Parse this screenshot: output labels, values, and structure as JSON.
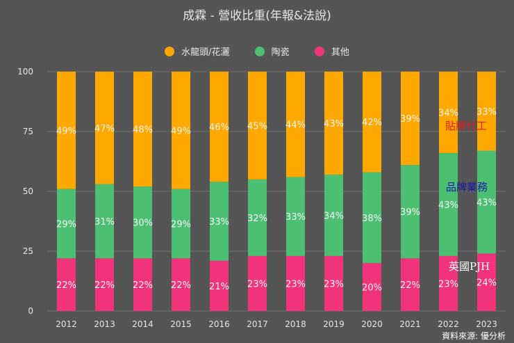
{
  "chart_data": {
    "type": "bar",
    "stacked": true,
    "title": "成霖 - 營收比重(年報&法說)",
    "categories": [
      "2012",
      "2013",
      "2014",
      "2015",
      "2016",
      "2017",
      "2018",
      "2019",
      "2020",
      "2021",
      "2022",
      "2023"
    ],
    "series": [
      {
        "name": "其他",
        "color": "#f0337a",
        "values": [
          22,
          22,
          22,
          22,
          21,
          23,
          23,
          23,
          20,
          22,
          23,
          24
        ]
      },
      {
        "name": "陶瓷",
        "color": "#4cbf73",
        "values": [
          29,
          31,
          30,
          29,
          33,
          32,
          33,
          34,
          38,
          39,
          43,
          43
        ]
      },
      {
        "name": "水龍頭/花灑",
        "color": "#ffa800",
        "values": [
          49,
          47,
          48,
          49,
          46,
          45,
          44,
          43,
          42,
          39,
          34,
          33
        ]
      }
    ],
    "ylim": [
      0,
      100
    ],
    "yticks": [
      0,
      25,
      50,
      75,
      100
    ],
    "grid": true,
    "legend": "top",
    "annotations": [
      {
        "text": "貼牌代工",
        "color": "#e81c1c"
      },
      {
        "text": "品牌業務",
        "color": "#1a1aa8"
      },
      {
        "text": "英國PJH",
        "color": "#ffffff"
      }
    ]
  },
  "source": "資料來源: 優分析"
}
